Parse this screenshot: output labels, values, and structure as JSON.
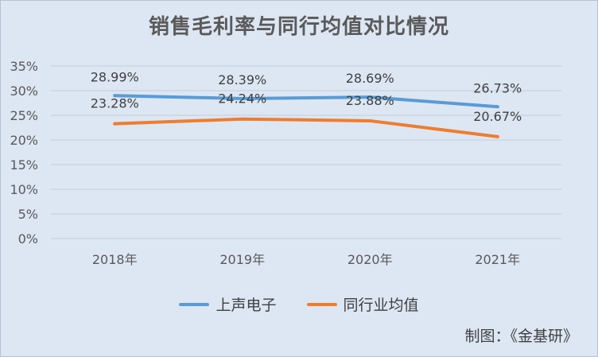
{
  "chart_data": {
    "type": "line",
    "title": "销售毛利率与同行均值对比情况",
    "xlabel": "",
    "ylabel": "",
    "categories": [
      "2018年",
      "2019年",
      "2020年",
      "2021年"
    ],
    "ylim": [
      0,
      35
    ],
    "yticks": [
      "0%",
      "5%",
      "10%",
      "15%",
      "20%",
      "25%",
      "30%",
      "35%"
    ],
    "grid": true,
    "legend_position": "bottom",
    "series": [
      {
        "name": "上声电子",
        "color": "#5b9bd5",
        "values": [
          28.99,
          28.39,
          28.69,
          26.73
        ],
        "labels": [
          "28.99%",
          "28.39%",
          "28.69%",
          "26.73%"
        ]
      },
      {
        "name": "同行业均值",
        "color": "#ed7d31",
        "values": [
          23.28,
          24.24,
          23.88,
          20.67
        ],
        "labels": [
          "23.28%",
          "24.24%",
          "23.88%",
          "20.67%"
        ]
      }
    ],
    "credit": "制图：《金基研》"
  }
}
